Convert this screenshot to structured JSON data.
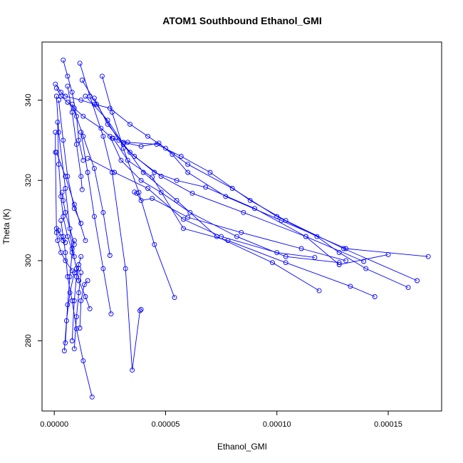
{
  "chart_data": {
    "type": "line",
    "title": "ATOM1 Southbound Ethanol_GMI",
    "xlabel": "Ethanol_GMI",
    "ylabel": "Theta (K)",
    "xlim": [
      -5.5e-06,
      0.000174
    ],
    "ylim": [
      262.5,
      354.5
    ],
    "x_ticks": [
      0,
      5e-05,
      0.0001,
      0.00015
    ],
    "x_tick_labels": [
      "0.00000",
      "0.00005",
      "0.00010",
      "0.00015"
    ],
    "y_ticks": [
      280,
      300,
      320,
      340
    ],
    "y_tick_labels": [
      "280",
      "300",
      "320",
      "340"
    ],
    "grid": false,
    "legend": "none",
    "series_color": "#0000ff",
    "marker": "open-circle",
    "series": [
      {
        "x": [
          5e-07,
          3e-06,
          5e-06,
          1.2e-05,
          1.8e-05,
          2.5e-05,
          3.4e-05,
          4.2e-05,
          5e-05,
          6e-05,
          8e-05,
          0.0001,
          0.000118,
          0.000128,
          0.00014,
          0.000159
        ],
        "y": [
          344,
          342,
          341,
          340,
          339,
          338,
          334,
          331,
          328,
          324,
          318,
          311,
          306,
          302,
          298,
          293.3
        ]
      },
      {
        "x": [
          1e-06,
          3e-06,
          6e-06,
          9e-06,
          1.3e-05,
          2.1e-05,
          2.6e-05,
          3.3e-05,
          4.6e-05,
          5.7e-05,
          7e-05,
          8.8e-05,
          0.000104,
          0.00013,
          0.000163
        ],
        "y": [
          343,
          341,
          339.5,
          338,
          336,
          333,
          330.5,
          329.5,
          329,
          326,
          322,
          315,
          310,
          303,
          295
        ]
      },
      {
        "x": [
          1e-06,
          2e-06,
          5e-06,
          8e-06,
          1e-05,
          1.1e-05,
          1.4e-05,
          1.6e-05
        ],
        "y": [
          341,
          332,
          318,
          303,
          298,
          295,
          291,
          288
        ]
      },
      {
        "x": [
          4e-06,
          6e-06,
          8e-06,
          1e-05,
          1.1e-05,
          1.3e-05
        ],
        "y": [
          350,
          346,
          342,
          336,
          330,
          325
        ]
      },
      {
        "x": [
          3e-06,
          4e-06,
          5e-06,
          6e-06,
          8e-06,
          1e-05,
          1.3e-05,
          1.7e-05
        ],
        "y": [
          310,
          306,
          302,
          296,
          290,
          283,
          275,
          266
        ]
      },
      {
        "x": [
          4.5e-06,
          5.5e-06,
          7e-06,
          9e-06,
          1.1e-05
        ],
        "y": [
          277.5,
          285,
          292,
          297,
          298
        ]
      },
      {
        "x": [
          5e-06,
          6e-06,
          7e-06,
          8e-06,
          9e-06
        ],
        "y": [
          279.5,
          289,
          296,
          302,
          305
        ]
      },
      {
        "x": [
          8e-06,
          9e-06,
          1e-05,
          1.1e-05,
          1.2e-05
        ],
        "y": [
          280,
          290,
          296,
          299,
          301
        ]
      },
      {
        "x": [
          9e-06,
          1e-05,
          1.1e-05,
          1.2e-05
        ],
        "y": [
          278,
          286,
          292,
          297
        ]
      },
      {
        "x": [
          1.15e-05,
          1.2e-05,
          1.35e-05,
          1.5e-05
        ],
        "y": [
          283.2,
          290,
          294,
          295
        ]
      },
      {
        "x": [
          1.15e-05,
          1.6e-05,
          2.2e-05,
          2.6e-05,
          3.2e-05,
          3.5e-05,
          3.85e-05,
          3.9e-05
        ],
        "y": [
          349.2,
          341,
          331,
          322,
          298,
          272.7,
          287.5,
          287.8
        ]
      },
      {
        "x": [
          5e-07,
          5e-07,
          1e-06,
          1.5e-06,
          3e-06,
          5e-06,
          8e-06
        ],
        "y": [
          332,
          327,
          307,
          305,
          302,
          300,
          297.5
        ]
      },
      {
        "x": [
          1.5e-06,
          2e-06,
          3e-06,
          4e-06,
          6e-06,
          9e-06
        ],
        "y": [
          334.5,
          324,
          316,
          311,
          306,
          301
        ]
      },
      {
        "x": [
          3.5e-06,
          4e-06,
          5e-06,
          7e-06,
          9e-06
        ],
        "y": [
          317,
          315,
          312,
          308,
          304
        ]
      },
      {
        "x": [
          1e-06,
          2e-06,
          3e-06,
          4e-06,
          5e-06
        ],
        "y": [
          308,
          307.5,
          306,
          305,
          304.5
        ]
      },
      {
        "x": [
          2e-06,
          4e-06,
          6e-06,
          9e-06,
          1.2e-05
        ],
        "y": [
          340,
          330,
          321,
          313,
          309.3
        ]
      },
      {
        "x": [
          6e-06,
          8e-06,
          1e-05,
          1.2e-05,
          1.25e-05
        ],
        "y": [
          343.5,
          337,
          329,
          321,
          317.7
        ]
      },
      {
        "x": [
          8e-06,
          1.3e-05,
          1.8e-05,
          2.2e-05,
          2.5e-05
        ],
        "y": [
          339,
          331,
          323,
          312,
          301.3
        ]
      },
      {
        "x": [
          1.2e-05,
          1.5e-05,
          1.8e-05,
          2.2e-05,
          2.55e-05
        ],
        "y": [
          332,
          322,
          311,
          298,
          286.7
        ]
      },
      {
        "x": [
          2.15e-05,
          2.6e-05,
          3.1e-05,
          3.8e-05,
          4.5e-05,
          5.4e-05
        ],
        "y": [
          346,
          337,
          328,
          317,
          304,
          290.8
        ]
      },
      {
        "x": [
          1e-06,
          5e-06,
          9e-06,
          1.4e-05
        ],
        "y": [
          327,
          321,
          314,
          305
        ]
      },
      {
        "x": [
          2.5e-05,
          3e-05,
          3.9e-05,
          4.8e-05,
          6.1e-05,
          8.2e-05,
          0.000104,
          0.000128
        ],
        "y": [
          331,
          325,
          320,
          317,
          312,
          306,
          301,
          299.5
        ]
      },
      {
        "x": [
          1.4e-05,
          2.4e-05,
          3.1e-05,
          4e-05,
          5.5e-05,
          7.3e-05,
          9.8e-05,
          0.000119
        ],
        "y": [
          341,
          335,
          329,
          322,
          315,
          306,
          299.5,
          292.5
        ]
      },
      {
        "x": [
          1.5e-05,
          2.7e-05,
          4.2e-05,
          5.8e-05,
          7.5e-05,
          0.0001,
          0.000117
        ],
        "y": [
          325.5,
          322,
          318,
          310.3,
          306,
          302,
          300.8
        ]
      },
      {
        "x": [
          2.65e-05,
          3.3e-05,
          4.4e-05,
          5.8e-05,
          7.8e-05,
          0.000104,
          0.000133,
          0.000144
        ],
        "y": [
          330.5,
          325,
          320.8,
          308,
          305,
          299.5,
          293.6,
          291
        ]
      },
      {
        "x": [
          1.25e-05,
          1.9e-05,
          2.9e-05,
          3.6e-05,
          4.8e-05,
          6.2e-05,
          8.5e-05,
          0.000113,
          0.000128,
          0.00015
        ],
        "y": [
          345,
          339,
          330,
          326,
          321,
          316.8,
          312,
          306,
          299,
          301.5
        ]
      },
      {
        "x": [
          1.8e-05,
          2.4e-05,
          3.4e-05,
          4.5e-05,
          5.5e-05,
          6.8e-05,
          9e-05,
          0.000113,
          0.000139
        ],
        "y": [
          340.5,
          334,
          327,
          322,
          320,
          318.3,
          313,
          306,
          299.8
        ]
      },
      {
        "x": [
          3.1e-05,
          3.9e-05,
          4.7e-05,
          5.3e-05,
          6e-05,
          7.7e-05,
          0.000102,
          0.000131,
          0.000168
        ],
        "y": [
          329.5,
          328.5,
          329.3,
          326.5,
          322,
          316,
          310,
          303,
          301
        ]
      },
      {
        "x": [
          3.6e-05,
          3.7e-05,
          3.9e-05,
          4.4e-05,
          6e-05,
          8.4e-05,
          0.000111,
          0.000131
        ],
        "y": [
          317.1,
          316.8,
          315,
          315.5,
          310.8,
          307,
          303,
          300
        ]
      }
    ]
  }
}
